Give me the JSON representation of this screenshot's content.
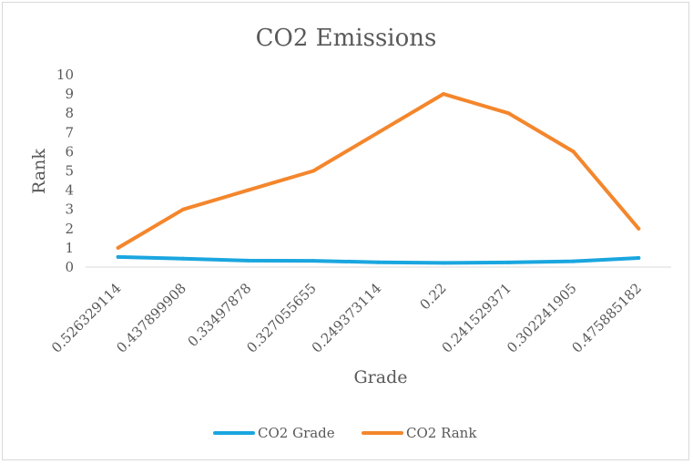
{
  "chart_data": {
    "type": "line",
    "title": "CO2 Emissions",
    "xlabel": "Grade",
    "ylabel": "Rank",
    "categories": [
      "0.526329114",
      "0.437899908",
      "0.33497878",
      "0.327055655",
      "0.249373114",
      "0.22",
      "0.241529371",
      "0.302241905",
      "0.475885182"
    ],
    "ylim": [
      0,
      10
    ],
    "yticks": [
      "0",
      "1",
      "2",
      "3",
      "4",
      "5",
      "6",
      "7",
      "8",
      "9",
      "10"
    ],
    "legend_position": "bottom",
    "series": [
      {
        "name": "CO2 Grade",
        "color": "#1aa6df",
        "values": [
          0.526329114,
          0.437899908,
          0.33497878,
          0.327055655,
          0.249373114,
          0.22,
          0.241529371,
          0.302241905,
          0.475885182
        ]
      },
      {
        "name": "CO2 Rank",
        "color": "#f4862c",
        "values": [
          1,
          3,
          4,
          5,
          7,
          9,
          8,
          6,
          2
        ]
      }
    ]
  }
}
